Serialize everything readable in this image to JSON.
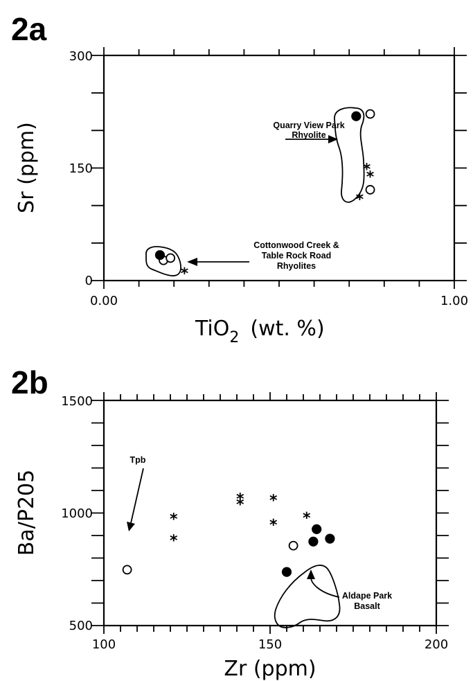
{
  "chart_data": [
    {
      "id": "2a",
      "type": "scatter",
      "panel_label": "2a",
      "xlabel_main": "TiO",
      "xlabel_sub": "2",
      "xlabel_rest": "(wt. %)",
      "ylabel": "Sr (ppm)",
      "xlim": [
        0.0,
        1.0
      ],
      "ylim": [
        0,
        300
      ],
      "x_tick_labels": [
        "0.00",
        "1.00"
      ],
      "y_tick_labels": [
        "0",
        "150",
        "300"
      ],
      "series": [
        {
          "marker": "open-circle",
          "points": [
            [
              0.17,
              27
            ],
            [
              0.19,
              30
            ],
            [
              0.76,
              222
            ],
            [
              0.76,
              121
            ]
          ]
        },
        {
          "marker": "filled-circle",
          "points": [
            [
              0.16,
              34
            ],
            [
              0.72,
              219
            ]
          ]
        },
        {
          "marker": "asterisk",
          "points": [
            [
              0.23,
              11
            ],
            [
              0.75,
              150
            ],
            [
              0.76,
              140
            ],
            [
              0.73,
              110
            ]
          ]
        }
      ],
      "annotations": [
        {
          "lines": [
            "Quarry View Park",
            "Rhyolite"
          ]
        },
        {
          "lines": [
            "Cottonwood Creek &",
            "Table Rock Road",
            "Rhyolites"
          ]
        }
      ]
    },
    {
      "id": "2b",
      "type": "scatter",
      "panel_label": "2b",
      "xlabel": "Zr (ppm)",
      "ylabel": "Ba/P205",
      "xlim": [
        100,
        200
      ],
      "ylim": [
        500,
        1500
      ],
      "x_tick_labels": [
        "100",
        "150",
        "200"
      ],
      "y_tick_labels": [
        "500",
        "1000",
        "1500"
      ],
      "series": [
        {
          "marker": "open-circle",
          "points": [
            [
              107,
              748
            ],
            [
              157,
              855
            ]
          ]
        },
        {
          "marker": "filled-circle",
          "points": [
            [
              155,
              738
            ],
            [
              163,
              873
            ],
            [
              164,
              928
            ],
            [
              168,
              886
            ]
          ]
        },
        {
          "marker": "asterisk",
          "points": [
            [
              121,
              978
            ],
            [
              121,
              883
            ],
            [
              141,
              1068
            ],
            [
              141,
              1043
            ],
            [
              151,
              1062
            ],
            [
              151,
              952
            ],
            [
              161,
              983
            ]
          ]
        }
      ],
      "annotations": [
        {
          "lines": [
            "Tpb"
          ]
        },
        {
          "lines": [
            "Aldape Park",
            "Basalt"
          ]
        }
      ]
    }
  ]
}
